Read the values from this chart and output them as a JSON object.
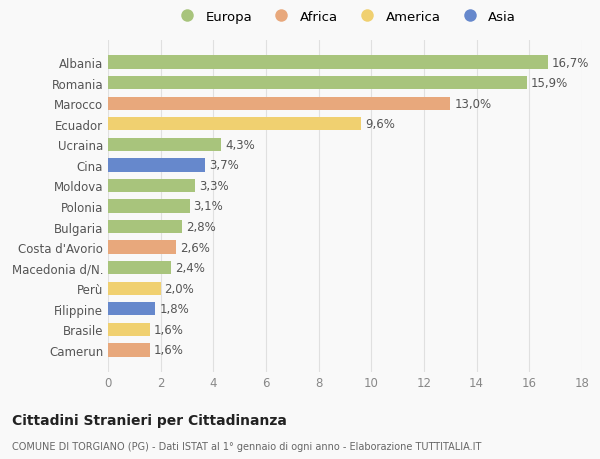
{
  "countries": [
    "Albania",
    "Romania",
    "Marocco",
    "Ecuador",
    "Ucraina",
    "Cina",
    "Moldova",
    "Polonia",
    "Bulgaria",
    "Costa d'Avorio",
    "Macedonia d/N.",
    "Perù",
    "Filippine",
    "Brasile",
    "Camerun"
  ],
  "values": [
    16.7,
    15.9,
    13.0,
    9.6,
    4.3,
    3.7,
    3.3,
    3.1,
    2.8,
    2.6,
    2.4,
    2.0,
    1.8,
    1.6,
    1.6
  ],
  "labels": [
    "16,7%",
    "15,9%",
    "13,0%",
    "9,6%",
    "4,3%",
    "3,7%",
    "3,3%",
    "3,1%",
    "2,8%",
    "2,6%",
    "2,4%",
    "2,0%",
    "1,8%",
    "1,6%",
    "1,6%"
  ],
  "continents": [
    "Europa",
    "Europa",
    "Africa",
    "America",
    "Europa",
    "Asia",
    "Europa",
    "Europa",
    "Europa",
    "Africa",
    "Europa",
    "America",
    "Asia",
    "America",
    "Africa"
  ],
  "colors": {
    "Europa": "#a8c47c",
    "Africa": "#e8a87c",
    "America": "#f0d070",
    "Asia": "#6688cc"
  },
  "xlim": [
    0,
    18
  ],
  "xticks": [
    0,
    2,
    4,
    6,
    8,
    10,
    12,
    14,
    16,
    18
  ],
  "title": "Cittadini Stranieri per Cittadinanza",
  "subtitle": "COMUNE DI TORGIANO (PG) - Dati ISTAT al 1° gennaio di ogni anno - Elaborazione TUTTITALIA.IT",
  "background_color": "#f9f9f9",
  "grid_color": "#e0e0e0",
  "bar_height": 0.65,
  "label_fontsize": 8.5,
  "tick_fontsize": 8.5,
  "legend_order": [
    "Europa",
    "Africa",
    "America",
    "Asia"
  ]
}
